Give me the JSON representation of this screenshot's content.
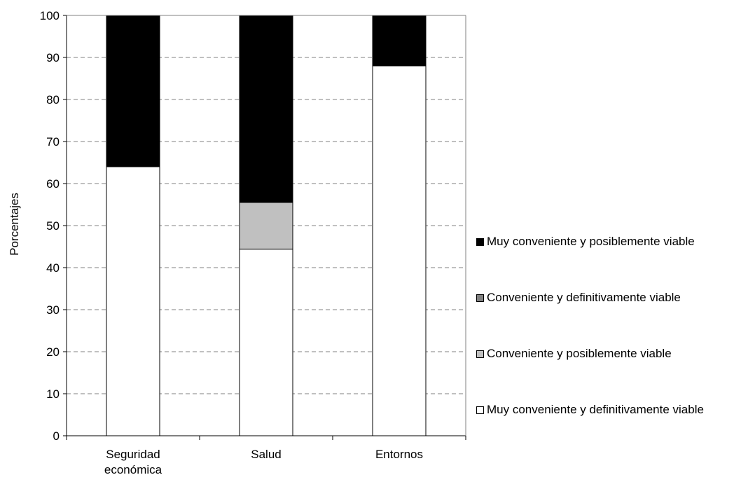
{
  "chart_data": {
    "type": "bar",
    "stacked": true,
    "categories": [
      "Seguridad\neconómica",
      "Salud",
      "Entornos"
    ],
    "series": [
      {
        "name": "Muy conveniente y definitivamente viable",
        "values": [
          64,
          44.4,
          88
        ],
        "color": "#ffffff"
      },
      {
        "name": "Conveniente y posiblemente viable",
        "values": [
          0,
          11.1,
          0
        ],
        "color": "#c0c0c0"
      },
      {
        "name": "Conveniente y definitivamente viable",
        "values": [
          0,
          0,
          0
        ],
        "color": "#808080"
      },
      {
        "name": "Muy conveniente y posiblemente viable",
        "values": [
          36,
          44.5,
          12
        ],
        "color": "#000000"
      }
    ],
    "title": "",
    "xlabel": "",
    "ylabel": "Porcentajes",
    "ylim": [
      0,
      100
    ],
    "yticks": [
      0,
      10,
      20,
      30,
      40,
      50,
      60,
      70,
      80,
      90,
      100
    ],
    "grid": "horizontal dashed",
    "legend_position": "right",
    "legend_order": [
      3,
      2,
      1,
      0
    ]
  }
}
